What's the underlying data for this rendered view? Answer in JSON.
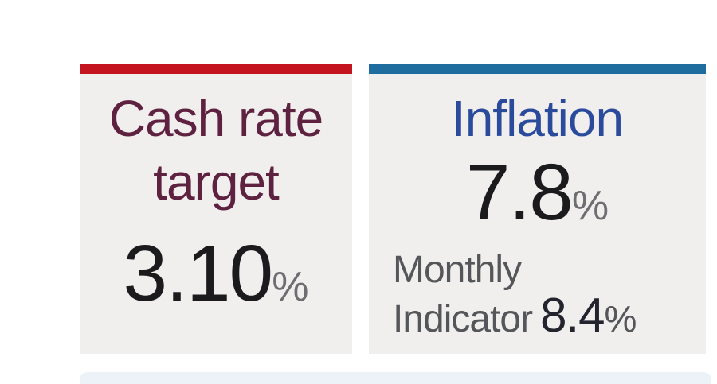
{
  "page": {
    "background_color": "#ffffff",
    "bottom_panel_color": "#edf2f9",
    "card_background_color": "#f0efee"
  },
  "cards": [
    {
      "name": "cash-rate-target",
      "accent_color": "#c41420",
      "title": "Cash rate target",
      "title_color": "#5e2140",
      "value": "3.10",
      "unit": "%"
    },
    {
      "name": "inflation",
      "accent_color": "#1f6c9e",
      "title": "Inflation",
      "title_color": "#2a4a9c",
      "value": "7.8",
      "unit": "%",
      "secondary": {
        "label_line1": "Monthly",
        "label_line2": "Indicator",
        "value": "8.4",
        "unit": "%"
      }
    }
  ]
}
